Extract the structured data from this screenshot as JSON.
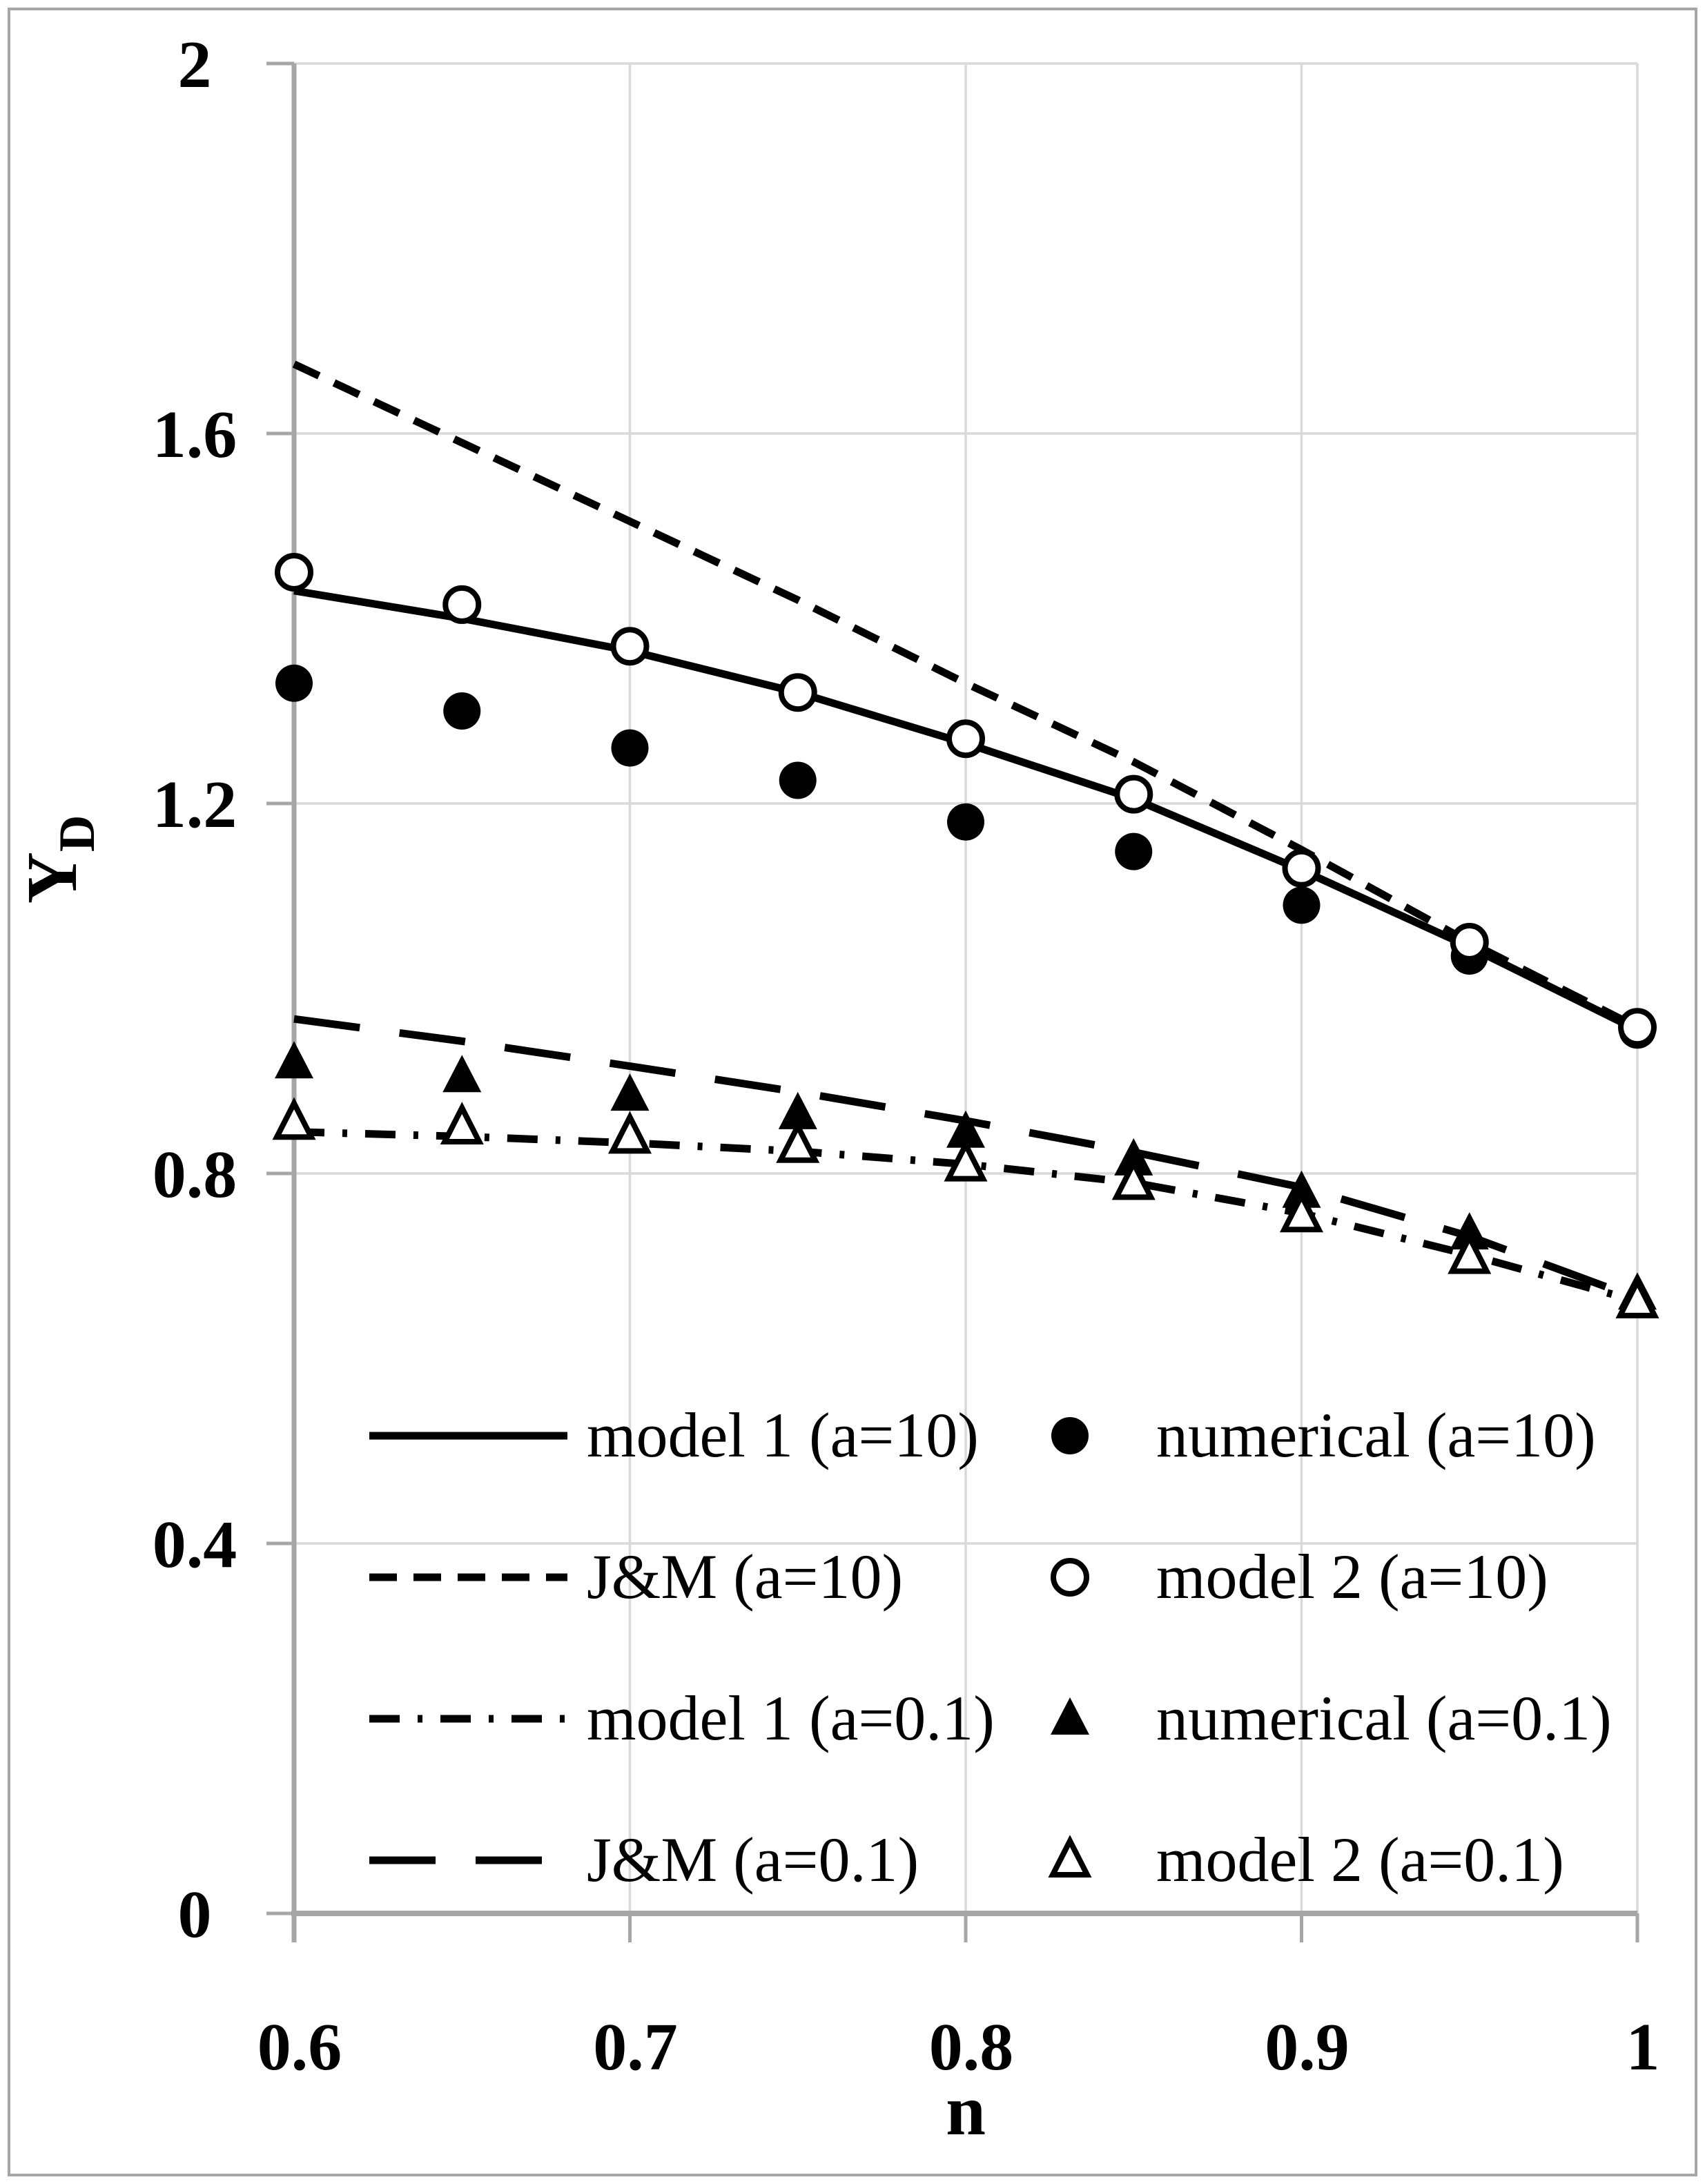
{
  "chart_data": {
    "type": "line",
    "x": [
      0.6,
      0.65,
      0.7,
      0.75,
      0.8,
      0.85,
      0.9,
      0.95,
      1.0
    ],
    "series": [
      {
        "name": "model 1 (a=10)",
        "kind": "line",
        "style": "solid",
        "values": [
          1.43,
          1.4,
          1.365,
          1.32,
          1.265,
          1.205,
          1.128,
          1.045,
          0.955
        ]
      },
      {
        "name": "J&M (a=10)",
        "kind": "line",
        "style": "short-dash",
        "values": [
          1.675,
          1.59,
          1.505,
          1.42,
          1.33,
          1.245,
          1.15,
          1.05,
          0.958
        ]
      },
      {
        "name": "model 1 (a=0.1)",
        "kind": "line",
        "style": "dash-dot",
        "values": [
          0.845,
          0.84,
          0.833,
          0.824,
          0.81,
          0.79,
          0.757,
          0.712,
          0.662
        ]
      },
      {
        "name": "J&M (a=0.1)",
        "kind": "line",
        "style": "long-dash",
        "values": [
          0.967,
          0.943,
          0.916,
          0.888,
          0.857,
          0.823,
          0.785,
          0.732,
          0.665
        ]
      },
      {
        "name": "numerical (a=10)",
        "kind": "scatter",
        "marker": "filled-circle",
        "values": [
          1.33,
          1.3,
          1.26,
          1.225,
          1.18,
          1.148,
          1.09,
          1.035,
          0.955
        ]
      },
      {
        "name": "model 2 (a=10)",
        "kind": "scatter",
        "marker": "open-circle",
        "values": [
          1.45,
          1.415,
          1.37,
          1.32,
          1.27,
          1.21,
          1.13,
          1.05,
          0.958
        ]
      },
      {
        "name": "numerical (a=0.1)",
        "kind": "scatter",
        "marker": "filled-triangle",
        "values": [
          0.92,
          0.905,
          0.885,
          0.865,
          0.845,
          0.815,
          0.78,
          0.735,
          0.67
        ]
      },
      {
        "name": "model 2 (a=0.1)",
        "kind": "scatter",
        "marker": "open-triangle",
        "values": [
          0.855,
          0.85,
          0.84,
          0.83,
          0.81,
          0.79,
          0.755,
          0.71,
          0.662
        ]
      }
    ],
    "xlabel": "n",
    "ylabel": {
      "main": "Y",
      "sub": "D"
    },
    "xlim": [
      0.6,
      1.0
    ],
    "ylim": [
      0,
      2
    ],
    "x_ticks": [
      "0.6",
      "0.7",
      "0.8",
      "0.9",
      "1"
    ],
    "x_tick_values": [
      0.6,
      0.7,
      0.8,
      0.9,
      1.0
    ],
    "y_ticks": [
      "2",
      "1.6",
      "1.2",
      "0.8",
      "0.4",
      "0"
    ],
    "y_tick_values": [
      2,
      1.6,
      1.2,
      0.8,
      0.4,
      0
    ],
    "grid": true,
    "legend_position": "inside-bottom",
    "legend": {
      "left": [
        "model 1 (a=10)",
        "J&M (a=10)",
        "model 1 (a=0.1)",
        "J&M (a=0.1)"
      ],
      "right": [
        "numerical (a=10)",
        "model 2 (a=10)",
        "numerical (a=0.1)",
        "model 2 (a=0.1)"
      ]
    },
    "colors": {
      "series": "#000000",
      "grid": "#d9d9d9",
      "axis": "#a6a6a6",
      "frame": "#a6a6a6",
      "background": "#ffffff"
    }
  }
}
